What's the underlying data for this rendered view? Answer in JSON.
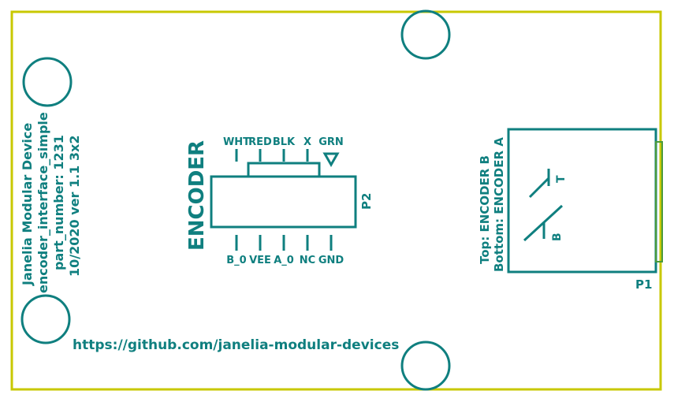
{
  "colors": {
    "outline": "#c8c800",
    "silkscreen": "#0f7f7f",
    "background": "#ffffff"
  },
  "board_info": {
    "line1": "Janelia Modular Device",
    "line2": "encoder_interface_simple",
    "line3": "part_number: 1231",
    "line4": "10/2020 ver 1.1 3x2"
  },
  "url": "https://github.com/janelia-modular-devices",
  "encoder_label": "ENCODER",
  "top_pins": [
    "WHT",
    "RED",
    "BLK",
    "X",
    "GRN"
  ],
  "bottom_pins": [
    "B_0",
    "VEE",
    "A_0",
    "NC",
    "GND"
  ],
  "p2_label": "P2",
  "p1_label": "P1",
  "p1_top": "Top: ENCODER B",
  "p1_bottom": "Bottom: ENCODER A",
  "switch_t": "T",
  "switch_b": "B",
  "icons": [
    "triangle-down-icon",
    "mounting-hole"
  ]
}
